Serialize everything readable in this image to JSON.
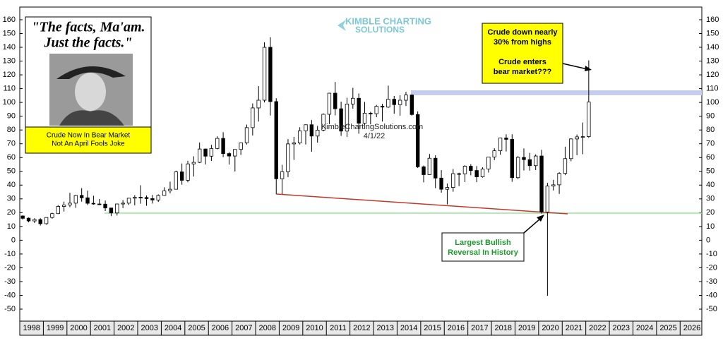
{
  "chart_data": {
    "type": "candlestick",
    "logo": [
      "KIMBLE CHARTING",
      "SOLUTIONS"
    ],
    "watermark": "KimbleChartingSolutions.com",
    "date": "4/1/22",
    "quote": [
      "\"The facts, Ma'am.",
      "Just the facts.\""
    ],
    "annotations": [
      {
        "lines": [
          "Crude Now In Bear Market",
          "Not An April Fools Joke"
        ]
      },
      {
        "lines": [
          "Crude down nearly",
          "30% from highs",
          "",
          "Crude enters",
          "bear market???"
        ]
      },
      {
        "lines": [
          "Largest Bullish",
          "Reversal In History"
        ]
      }
    ],
    "xlim": [
      1998,
      2026.92
    ],
    "xticks": [
      1998,
      1999,
      2000,
      2001,
      2002,
      2003,
      2004,
      2005,
      2006,
      2007,
      2008,
      2009,
      2010,
      2011,
      2012,
      2013,
      2014,
      2015,
      2016,
      2017,
      2018,
      2019,
      2020,
      2021,
      2022,
      2023,
      2024,
      2025,
      2026
    ],
    "ylim": [
      -58.7,
      169.2
    ],
    "yticks": [
      -50,
      -40,
      -30,
      -20,
      -10,
      0,
      10,
      20,
      30,
      40,
      50,
      60,
      70,
      80,
      90,
      100,
      110,
      120,
      130,
      140,
      150,
      160
    ],
    "x": [
      1998.125,
      1998.375,
      1998.625,
      1998.875,
      1999.125,
      1999.375,
      1999.625,
      1999.875,
      2000.125,
      2000.375,
      2000.625,
      2000.875,
      2001.125,
      2001.375,
      2001.625,
      2001.875,
      2002.125,
      2002.375,
      2002.625,
      2002.875,
      2003.125,
      2003.375,
      2003.625,
      2003.875,
      2004.125,
      2004.375,
      2004.625,
      2004.875,
      2005.125,
      2005.375,
      2005.625,
      2005.875,
      2006.125,
      2006.375,
      2006.625,
      2006.875,
      2007.125,
      2007.375,
      2007.625,
      2007.875,
      2008.125,
      2008.375,
      2008.625,
      2008.875,
      2009.125,
      2009.375,
      2009.625,
      2009.875,
      2010.125,
      2010.375,
      2010.625,
      2010.875,
      2011.125,
      2011.375,
      2011.625,
      2011.875,
      2012.125,
      2012.375,
      2012.625,
      2012.875,
      2013.125,
      2013.375,
      2013.625,
      2013.875,
      2014.125,
      2014.375,
      2014.625,
      2014.875,
      2015.125,
      2015.375,
      2015.625,
      2015.875,
      2016.125,
      2016.375,
      2016.625,
      2016.875,
      2017.125,
      2017.375,
      2017.625,
      2017.875,
      2018.125,
      2018.375,
      2018.625,
      2018.875,
      2019.125,
      2019.375,
      2019.625,
      2019.875,
      2020.125,
      2020.375,
      2020.625,
      2020.875,
      2021.125,
      2021.375,
      2021.625,
      2021.875,
      2022.125
    ],
    "open": [
      17.6,
      16,
      14,
      15,
      12,
      16.5,
      19.3,
      24.5,
      25.6,
      26.9,
      32.5,
      30.8,
      26.8,
      26.3,
      26.2,
      23.4,
      19.8,
      26.3,
      26.9,
      30.5,
      31.2,
      31,
      30.2,
      29.2,
      32.5,
      35.8,
      37,
      49.6,
      43.5,
      55.4,
      56.5,
      66.2,
      61,
      66.6,
      73.9,
      62.9,
      61.1,
      65.9,
      70.7,
      81.7,
      96,
      101.6,
      140,
      100.6,
      44.6,
      49.7,
      69.9,
      70.6,
      79.4,
      83.8,
      75.6,
      79.9,
      91.4,
      106.7,
      95.4,
      79.2,
      98.8,
      103,
      84.9,
      92.2,
      91.8,
      97.2,
      96.6,
      102.3,
      98.4,
      101.6,
      105.4,
      91.2,
      53.3,
      47.6,
      59.5,
      45.1,
      37,
      38.3,
      48.3,
      48.2,
      53.7,
      50.6,
      46,
      51.7,
      60.4,
      64.9,
      74.2,
      73.2,
      45.4,
      60.1,
      58.5,
      54.1,
      61.1,
      20.5,
      39.3,
      40.2,
      48.5,
      59.2,
      73.5,
      75,
      75.2
    ],
    "high": [
      18,
      16.5,
      16,
      16,
      16.5,
      20,
      25.5,
      28,
      34.4,
      33,
      37.8,
      36,
      32.3,
      29.9,
      28.8,
      23.5,
      26.5,
      29.1,
      30.8,
      32.7,
      39.9,
      32.5,
      32.9,
      33.3,
      38.4,
      42.5,
      50.5,
      55.7,
      57.6,
      60.9,
      70.9,
      66.5,
      69.2,
      75.4,
      78.4,
      64,
      66,
      71,
      83.9,
      99.3,
      111.8,
      143.7,
      147.3,
      103,
      54.7,
      73.4,
      75,
      82,
      84,
      87.2,
      83,
      92,
      106.9,
      114.8,
      100.6,
      103.4,
      110.6,
      106.5,
      100.4,
      93.2,
      98.2,
      99,
      112.2,
      104.7,
      105.2,
      107.7,
      105.8,
      93.5,
      54.2,
      62.6,
      61.6,
      50.9,
      41.2,
      51.7,
      49,
      54.5,
      55.2,
      53.8,
      52.9,
      60.5,
      66.7,
      74.5,
      76.9,
      76.9,
      61,
      66.6,
      63.4,
      62.3,
      65.6,
      41.6,
      43.8,
      49.4,
      67.9,
      74,
      76.7,
      85.4,
      130.5
    ],
    "low": [
      15,
      13,
      12.5,
      10.7,
      11.3,
      15.6,
      19,
      20.8,
      24,
      23.5,
      28,
      25.5,
      25.8,
      25.5,
      21.2,
      17.5,
      17.9,
      23.3,
      25.6,
      25.3,
      26.5,
      25,
      26.6,
      27.8,
      32.2,
      34,
      38,
      40.3,
      42.1,
      46.2,
      56,
      55,
      57.5,
      66,
      60.3,
      54.9,
      49.9,
      61.9,
      69.5,
      76,
      86.1,
      100,
      90.5,
      33.2,
      33.5,
      45.8,
      58.3,
      69.5,
      69.5,
      64.2,
      70.8,
      79,
      84.3,
      90.6,
      75.7,
      74.9,
      95.4,
      77.3,
      83.7,
      84.1,
      89.3,
      86.1,
      96,
      91.8,
      90.4,
      97.4,
      90.4,
      52.4,
      42,
      47.5,
      37.8,
      34.5,
      26,
      35.2,
      39.2,
      42.2,
      47.1,
      42.1,
      45.4,
      49.1,
      58.1,
      62,
      64.4,
      42.4,
      44.4,
      50.6,
      50.5,
      50.9,
      19.3,
      -40.3,
      36.1,
      33.6,
      47.2,
      57.3,
      61.7,
      62.4,
      74.3
    ],
    "close": [
      15.9,
      14,
      15,
      12,
      16.5,
      19.3,
      24.5,
      25.6,
      26.9,
      32.5,
      30.8,
      26.8,
      26.3,
      26.2,
      23.4,
      19.8,
      26.3,
      26.9,
      30.5,
      31.2,
      31,
      30.2,
      29.2,
      32.5,
      35.8,
      37,
      49.6,
      43.5,
      55.4,
      56.5,
      66.2,
      61,
      66.6,
      73.9,
      62.9,
      61.1,
      65.9,
      70.7,
      81.7,
      96,
      101.6,
      140,
      100.6,
      44.6,
      49.7,
      69.9,
      70.6,
      79.4,
      83.8,
      75.6,
      79.9,
      91.4,
      106.7,
      95.4,
      79.2,
      98.8,
      103,
      84.9,
      92.2,
      91.8,
      97.2,
      96.6,
      102.3,
      98.4,
      101.6,
      105.4,
      91.2,
      53.3,
      47.6,
      59.5,
      45.1,
      37,
      38.3,
      48.3,
      48.2,
      53.7,
      50.6,
      46,
      51.7,
      60.4,
      64.9,
      74.2,
      73.2,
      45.4,
      60.1,
      58.5,
      54.1,
      61.1,
      20.5,
      39.3,
      40.2,
      48.5,
      59.2,
      73.5,
      75,
      75.2,
      100.3
    ],
    "up_color": "#ffffff",
    "down_color": "#000000"
  }
}
